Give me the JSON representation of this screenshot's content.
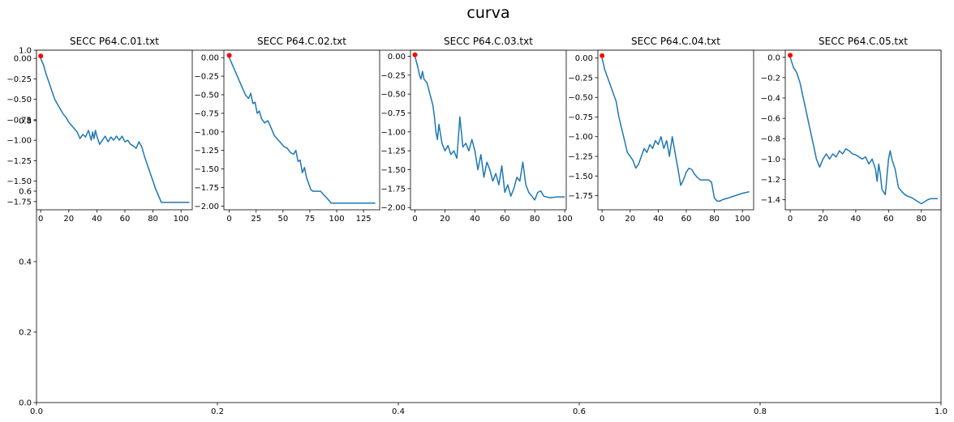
{
  "figure": {
    "title": "curva"
  },
  "chart_data": [
    {
      "type": "line",
      "title": "SECC P64.C.01.txt",
      "xlim": [
        -3,
        108
      ],
      "ylim": [
        -1.85,
        0.1
      ],
      "xticks": [
        0,
        20,
        40,
        60,
        80,
        100
      ],
      "yticks": [
        0.0,
        -0.25,
        -0.5,
        -0.75,
        -1.0,
        -1.25,
        -1.5,
        -1.75
      ],
      "ytick_labels": [
        "0.00",
        "−0.25",
        "−0.50",
        "−0.75",
        "−1.00",
        "−1.25",
        "−1.50",
        "−1.75"
      ],
      "marker": {
        "x": 0,
        "y": 0.03,
        "color": "#ff0000"
      },
      "series": [
        {
          "color": "#1f77b4",
          "x": [
            0,
            2,
            4,
            6,
            8,
            10,
            12,
            14,
            16,
            18,
            20,
            22,
            24,
            26,
            28,
            30,
            32,
            34,
            36,
            37,
            38,
            39,
            40,
            42,
            44,
            46,
            48,
            50,
            52,
            54,
            56,
            58,
            60,
            62,
            64,
            66,
            68,
            70,
            72,
            74,
            76,
            78,
            80,
            82,
            84,
            86,
            88,
            90,
            95,
            100,
            103,
            106
          ],
          "y": [
            0.0,
            -0.08,
            -0.2,
            -0.3,
            -0.4,
            -0.5,
            -0.56,
            -0.62,
            -0.68,
            -0.72,
            -0.78,
            -0.82,
            -0.86,
            -0.9,
            -0.98,
            -0.93,
            -0.96,
            -0.88,
            -1.0,
            -0.9,
            -0.98,
            -0.88,
            -0.95,
            -1.05,
            -1.0,
            -0.95,
            -1.02,
            -0.96,
            -1.0,
            -0.95,
            -1.0,
            -0.95,
            -1.02,
            -1.0,
            -1.05,
            -1.07,
            -1.1,
            -1.02,
            -1.08,
            -1.2,
            -1.3,
            -1.4,
            -1.5,
            -1.6,
            -1.68,
            -1.76,
            -1.76,
            -1.76,
            -1.76,
            -1.76,
            -1.76,
            -1.76
          ]
        }
      ]
    },
    {
      "type": "line",
      "title": "SECC P64.C.02.txt",
      "xlim": [
        -5,
        140
      ],
      "ylim": [
        -2.05,
        0.1
      ],
      "xticks": [
        0,
        25,
        50,
        75,
        100,
        125
      ],
      "yticks": [
        0.0,
        -0.25,
        -0.5,
        -0.75,
        -1.0,
        -1.25,
        -1.5,
        -1.75,
        -2.0
      ],
      "ytick_labels": [
        "0.00",
        "−0.25",
        "−0.50",
        "−0.75",
        "−1.00",
        "−1.25",
        "−1.50",
        "−1.75",
        "−2.00"
      ],
      "marker": {
        "x": 0,
        "y": 0.03,
        "color": "#ff0000"
      },
      "series": [
        {
          "color": "#1f77b4",
          "x": [
            0,
            3,
            6,
            9,
            12,
            15,
            18,
            20,
            22,
            24,
            26,
            28,
            30,
            33,
            36,
            39,
            42,
            45,
            48,
            51,
            54,
            57,
            60,
            62,
            64,
            66,
            68,
            70,
            72,
            74,
            76,
            78,
            80,
            85,
            90,
            95,
            100,
            110,
            120,
            130,
            136
          ],
          "y": [
            0.0,
            -0.1,
            -0.2,
            -0.3,
            -0.4,
            -0.5,
            -0.55,
            -0.48,
            -0.62,
            -0.6,
            -0.75,
            -0.72,
            -0.82,
            -0.88,
            -0.85,
            -0.95,
            -1.05,
            -1.1,
            -1.15,
            -1.2,
            -1.22,
            -1.28,
            -1.3,
            -1.25,
            -1.4,
            -1.38,
            -1.55,
            -1.48,
            -1.62,
            -1.7,
            -1.78,
            -1.8,
            -1.8,
            -1.8,
            -1.88,
            -1.96,
            -1.96,
            -1.96,
            -1.96,
            -1.96,
            -1.96
          ]
        }
      ]
    },
    {
      "type": "line",
      "title": "SECC P64.C.03.txt",
      "xlim": [
        -3,
        101
      ],
      "ylim": [
        -2.03,
        0.08
      ],
      "xticks": [
        0,
        20,
        40,
        60,
        80,
        100
      ],
      "yticks": [
        0.0,
        -0.25,
        -0.5,
        -0.75,
        -1.0,
        -1.25,
        -1.5,
        -1.75,
        -2.0
      ],
      "ytick_labels": [
        "0.00",
        "−0.25",
        "−0.50",
        "−0.75",
        "−1.00",
        "−1.25",
        "−1.50",
        "−1.75",
        "−2.00"
      ],
      "marker": {
        "x": 0,
        "y": 0.02,
        "color": "#ff0000"
      },
      "series": [
        {
          "color": "#1f77b4",
          "x": [
            0,
            2,
            3,
            4,
            5,
            6,
            8,
            10,
            12,
            13,
            14,
            15,
            16,
            18,
            20,
            22,
            24,
            26,
            28,
            30,
            32,
            34,
            36,
            38,
            40,
            42,
            44,
            46,
            48,
            50,
            52,
            54,
            56,
            58,
            60,
            62,
            64,
            66,
            68,
            70,
            72,
            74,
            76,
            78,
            80,
            82,
            84,
            86,
            90,
            95,
            100
          ],
          "y": [
            0.0,
            -0.15,
            -0.25,
            -0.3,
            -0.2,
            -0.3,
            -0.35,
            -0.5,
            -0.65,
            -0.8,
            -1.0,
            -1.1,
            -0.9,
            -1.15,
            -1.25,
            -1.18,
            -1.3,
            -1.25,
            -1.35,
            -0.8,
            -1.2,
            -1.15,
            -1.25,
            -1.1,
            -1.25,
            -1.5,
            -1.3,
            -1.6,
            -1.4,
            -1.5,
            -1.65,
            -1.55,
            -1.7,
            -1.45,
            -1.8,
            -1.7,
            -1.85,
            -1.75,
            -1.6,
            -1.65,
            -1.4,
            -1.7,
            -1.8,
            -1.85,
            -1.9,
            -1.8,
            -1.78,
            -1.85,
            -1.87,
            -1.86,
            -1.86
          ]
        }
      ]
    },
    {
      "type": "line",
      "title": "SECC P64.C.04.txt",
      "xlim": [
        -3,
        108
      ],
      "ylim": [
        -1.93,
        0.1
      ],
      "xticks": [
        0,
        20,
        40,
        60,
        80,
        100
      ],
      "yticks": [
        0.0,
        -0.25,
        -0.5,
        -0.75,
        -1.0,
        -1.25,
        -1.5,
        -1.75
      ],
      "ytick_labels": [
        "0.00",
        "−0.25",
        "−0.50",
        "−0.75",
        "−1.00",
        "−1.25",
        "−1.50",
        "−1.75"
      ],
      "marker": {
        "x": 0,
        "y": 0.03,
        "color": "#ff0000"
      },
      "series": [
        {
          "color": "#1f77b4",
          "x": [
            0,
            2,
            4,
            6,
            8,
            10,
            12,
            14,
            16,
            18,
            20,
            22,
            24,
            26,
            28,
            30,
            32,
            34,
            36,
            38,
            40,
            42,
            44,
            46,
            48,
            50,
            52,
            54,
            56,
            58,
            60,
            62,
            64,
            66,
            68,
            70,
            72,
            74,
            76,
            78,
            80,
            82,
            84,
            86,
            90,
            95,
            100,
            105
          ],
          "y": [
            0.0,
            -0.15,
            -0.25,
            -0.35,
            -0.45,
            -0.55,
            -0.75,
            -0.9,
            -1.05,
            -1.2,
            -1.25,
            -1.3,
            -1.4,
            -1.35,
            -1.25,
            -1.15,
            -1.2,
            -1.1,
            -1.15,
            -1.05,
            -1.1,
            -1.0,
            -1.15,
            -1.05,
            -1.25,
            -1.0,
            -1.2,
            -1.4,
            -1.62,
            -1.55,
            -1.45,
            -1.4,
            -1.42,
            -1.48,
            -1.52,
            -1.55,
            -1.55,
            -1.55,
            -1.55,
            -1.58,
            -1.78,
            -1.82,
            -1.82,
            -1.8,
            -1.78,
            -1.75,
            -1.72,
            -1.7
          ]
        }
      ]
    },
    {
      "type": "line",
      "title": "SECC P64.C.05.txt",
      "xlim": [
        -3,
        92
      ],
      "ylim": [
        -1.5,
        0.07
      ],
      "xticks": [
        0,
        20,
        40,
        60,
        80
      ],
      "yticks": [
        0.0,
        -0.2,
        -0.4,
        -0.6,
        -0.8,
        -1.0,
        -1.2,
        -1.4
      ],
      "ytick_labels": [
        "0.0",
        "−0.2",
        "−0.4",
        "−0.6",
        "−0.8",
        "−1.0",
        "−1.2",
        "−1.4"
      ],
      "marker": {
        "x": 0,
        "y": 0.02,
        "color": "#ff0000"
      },
      "series": [
        {
          "color": "#1f77b4",
          "x": [
            0,
            2,
            4,
            6,
            8,
            10,
            12,
            14,
            16,
            18,
            20,
            22,
            24,
            26,
            28,
            30,
            32,
            34,
            36,
            38,
            40,
            42,
            44,
            46,
            48,
            50,
            52,
            53,
            54,
            55,
            56,
            58,
            60,
            61,
            62,
            64,
            66,
            68,
            70,
            72,
            74,
            76,
            78,
            80,
            82,
            84,
            86,
            88,
            90
          ],
          "y": [
            0.0,
            -0.1,
            -0.15,
            -0.25,
            -0.4,
            -0.55,
            -0.7,
            -0.85,
            -1.0,
            -1.08,
            -1.0,
            -0.95,
            -1.0,
            -0.95,
            -0.98,
            -0.92,
            -0.95,
            -0.9,
            -0.92,
            -0.95,
            -0.96,
            -0.98,
            -1.0,
            -0.98,
            -1.05,
            -1.0,
            -1.1,
            -1.22,
            -1.05,
            -1.15,
            -1.3,
            -1.35,
            -1.0,
            -0.92,
            -1.0,
            -1.1,
            -1.28,
            -1.32,
            -1.35,
            -1.37,
            -1.38,
            -1.4,
            -1.42,
            -1.44,
            -1.42,
            -1.4,
            -1.39,
            -1.39,
            -1.39
          ]
        }
      ]
    },
    {
      "type": "line",
      "title": "",
      "xlim": [
        0,
        1
      ],
      "ylim": [
        0,
        1
      ],
      "xticks": [
        0.0,
        0.2,
        0.4,
        0.6,
        0.8,
        1.0
      ],
      "xtick_labels": [
        "0.0",
        "0.2",
        "0.4",
        "0.6",
        "0.8",
        "1.0"
      ],
      "yticks": [
        0.0,
        0.2,
        0.4,
        0.6,
        0.8,
        1.0
      ],
      "ytick_labels": [
        "0.0",
        "0.2",
        "0.4",
        "0.6",
        "0.8",
        "1.0"
      ],
      "series": []
    }
  ]
}
